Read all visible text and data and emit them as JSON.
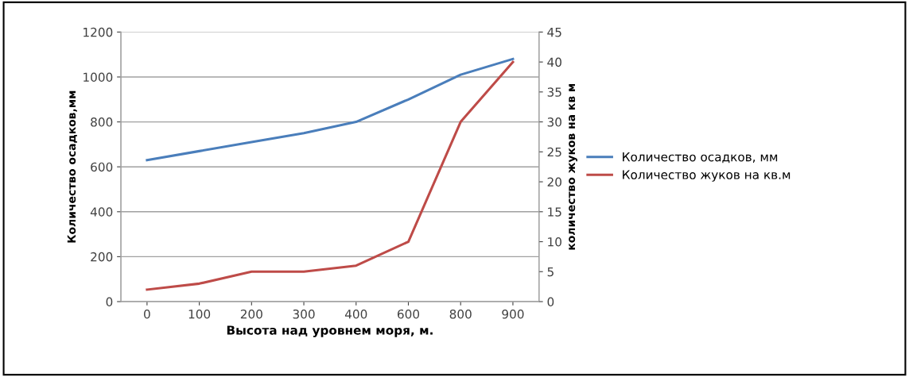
{
  "chart_data": {
    "type": "line",
    "xlabel": "Высота над уровнем моря, м.",
    "ylabel": "Количество осадков,мм",
    "y2label": "количество жуков на кв м",
    "categories": [
      "0",
      "100",
      "200",
      "300",
      "400",
      "600",
      "800",
      "900"
    ],
    "series": [
      {
        "name": "Количество осадков, мм",
        "color": "#4a7ebb",
        "values": [
          630,
          670,
          710,
          750,
          800,
          900,
          1010,
          1080
        ]
      },
      {
        "name": "Количество жуков на кв.м",
        "color": "#be4b48",
        "axis": "y2",
        "values": [
          2,
          3,
          5,
          5,
          6,
          10,
          30,
          40
        ]
      }
    ],
    "ylim": [
      0,
      1200
    ],
    "yticks": [
      0,
      200,
      400,
      600,
      800,
      1000,
      1200
    ],
    "y2lim": [
      0,
      45
    ],
    "y2ticks": [
      0,
      5,
      10,
      15,
      20,
      25,
      30,
      35,
      40,
      45
    ],
    "grid": "y",
    "legend": "right",
    "marker": "none",
    "line_style": "solid"
  }
}
